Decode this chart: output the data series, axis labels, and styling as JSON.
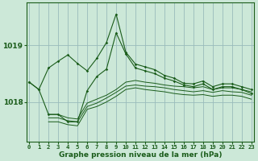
{
  "title": "Graphe pression niveau de la mer (hPa)",
  "bg_color": "#cce8d8",
  "grid_color": "#99bbbb",
  "line_color": "#1a5c1a",
  "x_ticks": [
    0,
    1,
    2,
    3,
    4,
    5,
    6,
    7,
    8,
    9,
    10,
    11,
    12,
    13,
    14,
    15,
    16,
    17,
    18,
    19,
    20,
    21,
    22,
    23
  ],
  "y_ticks": [
    1018,
    1019
  ],
  "ylim": [
    1017.3,
    1019.75
  ],
  "xlim": [
    -0.3,
    23.3
  ],
  "main_series": {
    "x": [
      0,
      1,
      2,
      3,
      4,
      5,
      6,
      7,
      8,
      9,
      10,
      11,
      12,
      13,
      14,
      15,
      16,
      17,
      18,
      19,
      20,
      21,
      22,
      23
    ],
    "y": [
      1018.35,
      1018.22,
      1018.6,
      1018.72,
      1018.83,
      1018.68,
      1018.55,
      1018.77,
      1019.05,
      1019.55,
      1018.88,
      1018.67,
      1018.62,
      1018.57,
      1018.47,
      1018.42,
      1018.33,
      1018.32,
      1018.37,
      1018.27,
      1018.32,
      1018.32,
      1018.27,
      1018.22
    ]
  },
  "series1": {
    "x": [
      0,
      1,
      2,
      3,
      4,
      5,
      6,
      7,
      8,
      9,
      10,
      11,
      12,
      13,
      14,
      15,
      16,
      17,
      18,
      19,
      20,
      21,
      22,
      23
    ],
    "y": [
      1018.35,
      1018.22,
      1017.78,
      1017.78,
      1017.65,
      1017.65,
      1018.2,
      1018.45,
      1018.58,
      1019.22,
      1018.85,
      1018.6,
      1018.55,
      1018.5,
      1018.42,
      1018.37,
      1018.3,
      1018.27,
      1018.32,
      1018.22,
      1018.27,
      1018.27,
      1018.22,
      1018.15
    ]
  },
  "band_series": [
    {
      "x": [
        2,
        3,
        4,
        5,
        6,
        7,
        8,
        9,
        10,
        11,
        12,
        13,
        14,
        15,
        16,
        17,
        18,
        19,
        20,
        21,
        22,
        23
      ],
      "y": [
        1017.78,
        1017.78,
        1017.72,
        1017.7,
        1017.98,
        1018.05,
        1018.12,
        1018.22,
        1018.35,
        1018.38,
        1018.35,
        1018.33,
        1018.3,
        1018.28,
        1018.27,
        1018.25,
        1018.27,
        1018.22,
        1018.25,
        1018.25,
        1018.22,
        1018.18
      ]
    },
    {
      "x": [
        2,
        3,
        4,
        5,
        6,
        7,
        8,
        9,
        10,
        11,
        12,
        13,
        14,
        15,
        16,
        17,
        18,
        19,
        20,
        21,
        22,
        23
      ],
      "y": [
        1017.72,
        1017.72,
        1017.67,
        1017.65,
        1017.92,
        1017.98,
        1018.07,
        1018.17,
        1018.28,
        1018.3,
        1018.28,
        1018.27,
        1018.25,
        1018.22,
        1018.2,
        1018.18,
        1018.2,
        1018.17,
        1018.2,
        1018.18,
        1018.17,
        1018.12
      ]
    },
    {
      "x": [
        2,
        3,
        4,
        5,
        6,
        7,
        8,
        9,
        10,
        11,
        12,
        13,
        14,
        15,
        16,
        17,
        18,
        19,
        20,
        21,
        22,
        23
      ],
      "y": [
        1017.65,
        1017.65,
        1017.6,
        1017.58,
        1017.87,
        1017.92,
        1018.0,
        1018.1,
        1018.22,
        1018.25,
        1018.22,
        1018.2,
        1018.18,
        1018.15,
        1018.13,
        1018.12,
        1018.13,
        1018.1,
        1018.12,
        1018.12,
        1018.1,
        1018.05
      ]
    }
  ]
}
